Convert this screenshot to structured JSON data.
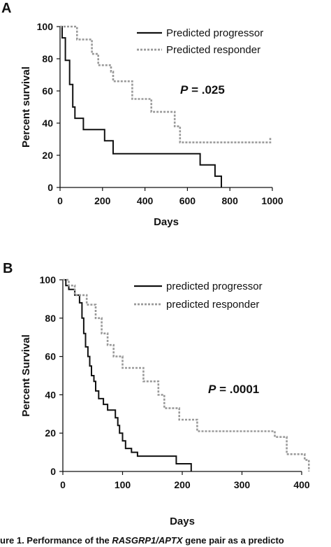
{
  "caption": "ure 1. Performance of the RASGRP1/APTX gene pair as a predicto",
  "caption_parts": {
    "pre": "ure 1. Performance of the ",
    "ital": "RASGRP1/APTX",
    "post": " gene pair as a predicto"
  },
  "chart_data": [
    {
      "panel": "A",
      "type": "line",
      "xlabel": "Days",
      "ylabel": "Percent survival",
      "xlim": [
        0,
        1000
      ],
      "ylim": [
        0,
        100
      ],
      "xticks": [
        0,
        200,
        400,
        600,
        800,
        1000
      ],
      "yticks": [
        0,
        20,
        40,
        60,
        80,
        100
      ],
      "annotation": "P = .025",
      "legend_position": "top-right",
      "series": [
        {
          "name": "Predicted progressor",
          "color": "#111111",
          "style": "solid",
          "points": [
            [
              0,
              100
            ],
            [
              10,
              100
            ],
            [
              10,
              93
            ],
            [
              25,
              93
            ],
            [
              25,
              79
            ],
            [
              45,
              79
            ],
            [
              45,
              64
            ],
            [
              60,
              64
            ],
            [
              60,
              50
            ],
            [
              70,
              50
            ],
            [
              70,
              43
            ],
            [
              110,
              43
            ],
            [
              110,
              36
            ],
            [
              210,
              36
            ],
            [
              210,
              29
            ],
            [
              250,
              29
            ],
            [
              250,
              21
            ],
            [
              660,
              21
            ],
            [
              660,
              14
            ],
            [
              730,
              14
            ],
            [
              730,
              7
            ],
            [
              760,
              7
            ],
            [
              760,
              0
            ]
          ]
        },
        {
          "name": "Predicted responder",
          "color": "#999999",
          "style": "dotted",
          "points": [
            [
              0,
              100
            ],
            [
              80,
              100
            ],
            [
              80,
              92
            ],
            [
              150,
              92
            ],
            [
              150,
              83
            ],
            [
              180,
              83
            ],
            [
              180,
              76
            ],
            [
              240,
              76
            ],
            [
              240,
              72
            ],
            [
              250,
              72
            ],
            [
              250,
              66
            ],
            [
              340,
              66
            ],
            [
              340,
              55
            ],
            [
              430,
              55
            ],
            [
              430,
              47
            ],
            [
              540,
              47
            ],
            [
              540,
              38
            ],
            [
              565,
              38
            ],
            [
              565,
              28
            ],
            [
              990,
              28
            ],
            [
              990,
              31
            ]
          ]
        }
      ]
    },
    {
      "panel": "B",
      "type": "line",
      "xlabel": "Days",
      "ylabel": "Percent Survival",
      "xlim": [
        0,
        400
      ],
      "ylim": [
        0,
        100
      ],
      "xticks": [
        0,
        100,
        200,
        300,
        400
      ],
      "yticks": [
        0,
        20,
        40,
        60,
        80,
        100
      ],
      "annotation": "P = .0001",
      "legend_position": "top-right",
      "series": [
        {
          "name": "predicted progressor",
          "color": "#111111",
          "style": "solid",
          "points": [
            [
              0,
              100
            ],
            [
              5,
              100
            ],
            [
              5,
              97
            ],
            [
              10,
              97
            ],
            [
              10,
              95
            ],
            [
              20,
              95
            ],
            [
              20,
              92
            ],
            [
              28,
              92
            ],
            [
              28,
              88
            ],
            [
              32,
              88
            ],
            [
              32,
              80
            ],
            [
              35,
              80
            ],
            [
              35,
              72
            ],
            [
              38,
              72
            ],
            [
              38,
              65
            ],
            [
              42,
              65
            ],
            [
              42,
              60
            ],
            [
              45,
              60
            ],
            [
              45,
              55
            ],
            [
              48,
              55
            ],
            [
              48,
              50
            ],
            [
              52,
              50
            ],
            [
              52,
              47
            ],
            [
              55,
              47
            ],
            [
              55,
              42
            ],
            [
              60,
              42
            ],
            [
              60,
              38
            ],
            [
              68,
              38
            ],
            [
              68,
              35
            ],
            [
              75,
              35
            ],
            [
              75,
              32
            ],
            [
              88,
              32
            ],
            [
              88,
              28
            ],
            [
              92,
              28
            ],
            [
              92,
              24
            ],
            [
              95,
              24
            ],
            [
              95,
              20
            ],
            [
              100,
              20
            ],
            [
              100,
              16
            ],
            [
              105,
              16
            ],
            [
              105,
              12
            ],
            [
              115,
              12
            ],
            [
              115,
              10
            ],
            [
              125,
              10
            ],
            [
              125,
              8
            ],
            [
              190,
              8
            ],
            [
              190,
              4
            ],
            [
              215,
              4
            ],
            [
              215,
              0
            ]
          ]
        },
        {
          "name": "predicted responder",
          "color": "#999999",
          "style": "dotted",
          "points": [
            [
              0,
              100
            ],
            [
              10,
              100
            ],
            [
              10,
              97
            ],
            [
              20,
              97
            ],
            [
              20,
              92
            ],
            [
              40,
              92
            ],
            [
              40,
              87
            ],
            [
              55,
              87
            ],
            [
              55,
              80
            ],
            [
              65,
              80
            ],
            [
              65,
              72
            ],
            [
              75,
              72
            ],
            [
              75,
              66
            ],
            [
              85,
              66
            ],
            [
              85,
              60
            ],
            [
              100,
              60
            ],
            [
              100,
              54
            ],
            [
              135,
              54
            ],
            [
              135,
              47
            ],
            [
              160,
              47
            ],
            [
              160,
              40
            ],
            [
              170,
              40
            ],
            [
              170,
              33
            ],
            [
              195,
              33
            ],
            [
              195,
              27
            ],
            [
              225,
              27
            ],
            [
              225,
              21
            ],
            [
              355,
              21
            ],
            [
              355,
              18
            ],
            [
              375,
              18
            ],
            [
              375,
              9
            ],
            [
              405,
              9
            ],
            [
              405,
              6
            ],
            [
              412,
              6
            ],
            [
              412,
              0
            ]
          ]
        }
      ]
    }
  ]
}
